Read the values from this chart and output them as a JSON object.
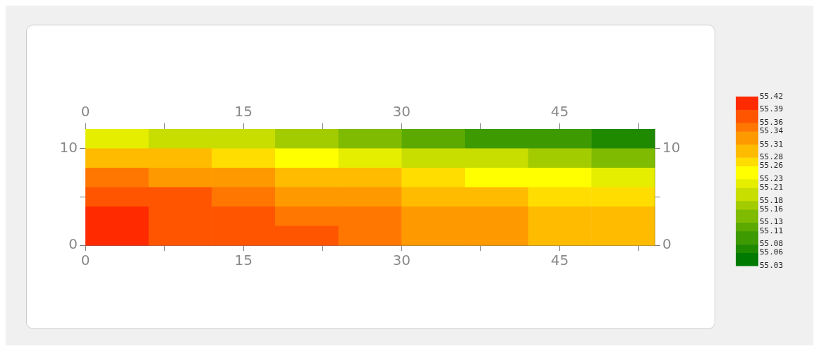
{
  "chart_data": {
    "type": "heatmap",
    "x": [
      3,
      9,
      15,
      21,
      27,
      33,
      39,
      45,
      51
    ],
    "cells": [
      [
        55.22,
        55.2,
        55.18,
        55.16,
        55.14,
        55.12,
        55.1,
        55.08,
        55.06
      ],
      [
        55.3,
        55.28,
        55.26,
        55.24,
        55.22,
        55.2,
        55.18,
        55.16,
        55.14
      ],
      [
        55.35,
        55.33,
        55.31,
        55.3,
        55.28,
        55.26,
        55.25,
        55.23,
        55.21
      ],
      [
        55.38,
        55.36,
        55.35,
        55.33,
        55.32,
        55.3,
        55.29,
        55.27,
        55.26
      ],
      [
        55.4,
        55.38,
        55.36,
        55.35,
        55.34,
        55.32,
        55.31,
        55.29,
        55.28
      ],
      [
        55.4,
        55.38,
        55.37,
        55.36,
        55.35,
        55.33,
        55.32,
        55.3,
        55.29
      ]
    ],
    "xlim": [
      0,
      54
    ],
    "ylim": [
      0,
      12
    ],
    "xticks": [
      0,
      {
        "value": 7.5,
        "label": null
      },
      15,
      {
        "value": 22.5,
        "label": null
      },
      30,
      {
        "value": 37.5,
        "label": null
      },
      45,
      {
        "value": 52.5,
        "label": null
      }
    ],
    "x2lim": [
      0,
      54
    ],
    "x2ticks": [
      0,
      {
        "value": 7.5,
        "label": null
      },
      15,
      {
        "value": 22.5,
        "label": null
      },
      30,
      {
        "value": 37.5,
        "label": null
      },
      45,
      {
        "value": 52.5,
        "label": null
      }
    ],
    "yticks": [
      0,
      {
        "value": 5,
        "label": null
      },
      10
    ],
    "y2lim": [
      0,
      12
    ],
    "y2ticks": [
      0,
      {
        "value": 5,
        "label": null
      },
      10
    ],
    "clim": [
      55.03,
      55.42
    ],
    "cticks": [
      55.42,
      55.39,
      55.36,
      55.34,
      55.31,
      55.28,
      55.26,
      55.23,
      55.21,
      55.18,
      55.16,
      55.13,
      55.11,
      55.08,
      55.06,
      55.03
    ]
  }
}
